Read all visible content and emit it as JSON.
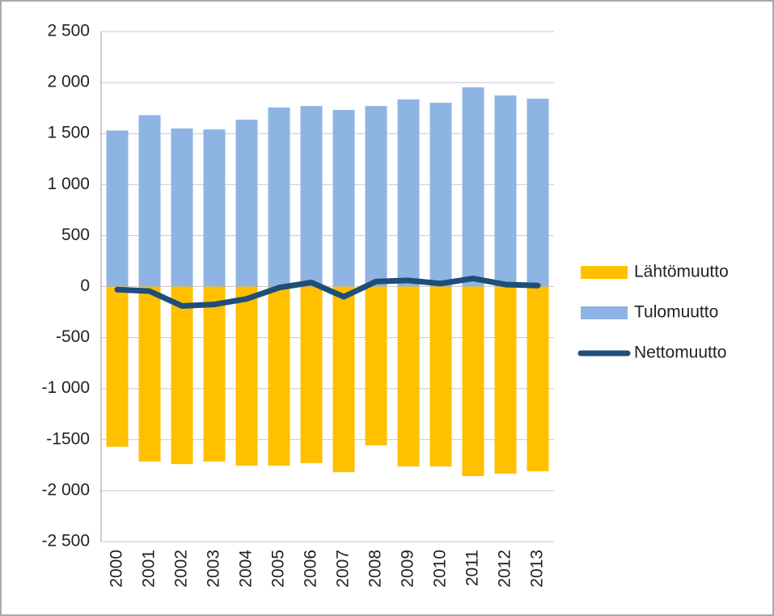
{
  "chart_data": {
    "type": "bar_line",
    "categories": [
      "2000",
      "2001",
      "2002",
      "2003",
      "2004",
      "2005",
      "2006",
      "2007",
      "2008",
      "2009",
      "2010",
      "2011",
      "2012",
      "2013"
    ],
    "series": [
      {
        "name": "Lähtömuutto",
        "type": "bar",
        "color": "#ffc000",
        "values": [
          -1570,
          -1715,
          -1740,
          -1715,
          -1755,
          -1755,
          -1730,
          -1820,
          -1557,
          -1763,
          -1763,
          -1858,
          -1834,
          -1810
        ]
      },
      {
        "name": "Tulomuutto",
        "type": "bar",
        "color": "#8eb4e3",
        "values": [
          1530,
          1680,
          1550,
          1540,
          1636,
          1755,
          1770,
          1731,
          1770,
          1834,
          1802,
          1953,
          1873,
          1842
        ]
      },
      {
        "name": "Nettomuutto",
        "type": "line",
        "color": "#1f4e79",
        "values": [
          -30,
          -45,
          -190,
          -175,
          -120,
          -10,
          40,
          -100,
          50,
          60,
          30,
          80,
          20,
          10
        ]
      }
    ],
    "ylim": [
      -2500,
      2500
    ],
    "yticks": [
      {
        "value": 2500,
        "label": "2 500"
      },
      {
        "value": 2000,
        "label": "2 000"
      },
      {
        "value": 1500,
        "label": "1 500"
      },
      {
        "value": 1000,
        "label": "1 000"
      },
      500,
      0,
      -500,
      {
        "value": -1000,
        "label": "-1 000"
      },
      {
        "value": -1500,
        "label": "-1500"
      },
      {
        "value": -2000,
        "label": "-2 000"
      },
      {
        "value": -2500,
        "label": "-2 500"
      }
    ],
    "grid": true,
    "legend": "right"
  }
}
